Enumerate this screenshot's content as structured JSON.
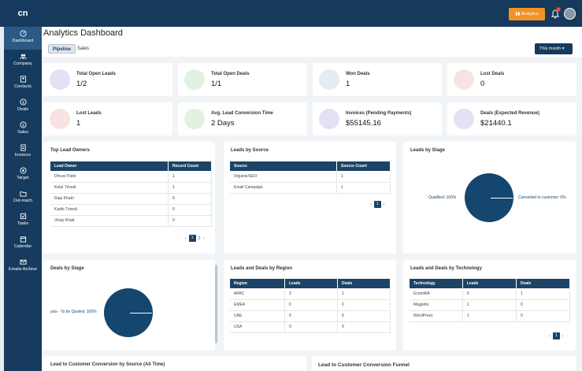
{
  "app": {
    "logo": "cn"
  },
  "topbar": {
    "analytics_label": "Analytics",
    "notif_count": "1"
  },
  "sidebar": [
    {
      "label": "Dashboard",
      "icon": "gauge-icon"
    },
    {
      "label": "Company",
      "icon": "people-icon"
    },
    {
      "label": "Contacts",
      "icon": "contacts-icon"
    },
    {
      "label": "Deals",
      "icon": "dollar-icon"
    },
    {
      "label": "Sales",
      "icon": "sales-icon"
    },
    {
      "label": "Invoices",
      "icon": "invoice-icon"
    },
    {
      "label": "Target",
      "icon": "target-icon"
    },
    {
      "label": "Out-reach",
      "icon": "folder-icon"
    },
    {
      "label": "Tasks",
      "icon": "tasks-icon"
    },
    {
      "label": "Calendar",
      "icon": "calendar-icon"
    },
    {
      "label": "Emails Archive",
      "icon": "mail-icon"
    }
  ],
  "page": {
    "title": "Analytics Dashboard"
  },
  "tabs": {
    "pipeline": "Pipeline",
    "sales": "Sales"
  },
  "filter": {
    "month": "This month"
  },
  "kpis": [
    {
      "label": "Total Open Leads",
      "value": "1/2",
      "color": "#e5e1f5"
    },
    {
      "label": "Total Open Deals",
      "value": "1/1",
      "color": "#e1f2e3"
    },
    {
      "label": "Won Deals",
      "value": "1",
      "color": "#e6ecf5"
    },
    {
      "label": "Lost Deals",
      "value": "0",
      "color": "#f8e3e3"
    },
    {
      "label": "Lost Leads",
      "value": "1",
      "color": "#f8e3e3"
    },
    {
      "label": "Avg. Lead Conversion Time",
      "value": "2 Days",
      "color": "#e1f2e3"
    },
    {
      "label": "Invoices (Pending Payments)",
      "value": "$55145.16",
      "color": "#e5e1f5"
    },
    {
      "label": "Deals (Expected Revenue)",
      "value": "$21440.1",
      "color": "#e5e1f5"
    }
  ],
  "top_lead_owners": {
    "title": "Top Lead Owners",
    "headers": [
      "Lead Owner",
      "Record Count"
    ],
    "rows": [
      [
        "Dhruvi Patel",
        "1"
      ],
      [
        "Ketul Trivedi",
        "1"
      ],
      [
        "Raja Khatri",
        "0"
      ],
      [
        "Kartik Trivedi",
        "0"
      ],
      [
        "Vinay Khatt",
        "0"
      ]
    ],
    "pages": [
      "1",
      "2"
    ]
  },
  "leads_by_source": {
    "title": "Leads by Source",
    "headers": [
      "Source",
      "Source Count"
    ],
    "rows": [
      [
        "Organic/SEO",
        "1"
      ],
      [
        "Email Campaign",
        "1"
      ]
    ],
    "pages": [
      "1"
    ]
  },
  "leads_by_stage": {
    "title": "Leads by Stage",
    "label_left": "Qualified: 100%",
    "label_right": "Converted to customer: 0%"
  },
  "deals_by_stage": {
    "title": "Deals by Stage",
    "label": "ysis - To be Quoted: 100%"
  },
  "region": {
    "title": "Leads and Deals by Region",
    "headers": [
      "Region",
      "Leads",
      "Deals"
    ],
    "rows": [
      [
        "APAC",
        "2",
        "1"
      ],
      [
        "EMEA",
        "0",
        "0"
      ],
      [
        "UAE",
        "0",
        "0"
      ],
      [
        "USA",
        "0",
        "0"
      ]
    ]
  },
  "technology": {
    "title": "Leads and Deals by Technology",
    "headers": [
      "Technology",
      "Leads",
      "Deals"
    ],
    "rows": [
      [
        "EcomWA",
        "0",
        "1"
      ],
      [
        "Magento",
        "1",
        "0"
      ],
      [
        "WordPress",
        "1",
        "0"
      ]
    ],
    "pages": [
      "1"
    ]
  },
  "bottom": {
    "left_title": "Lead to Customer Conversion by Source (All Time)",
    "right_title": "Lead to Customer Conversion Funnel"
  }
}
